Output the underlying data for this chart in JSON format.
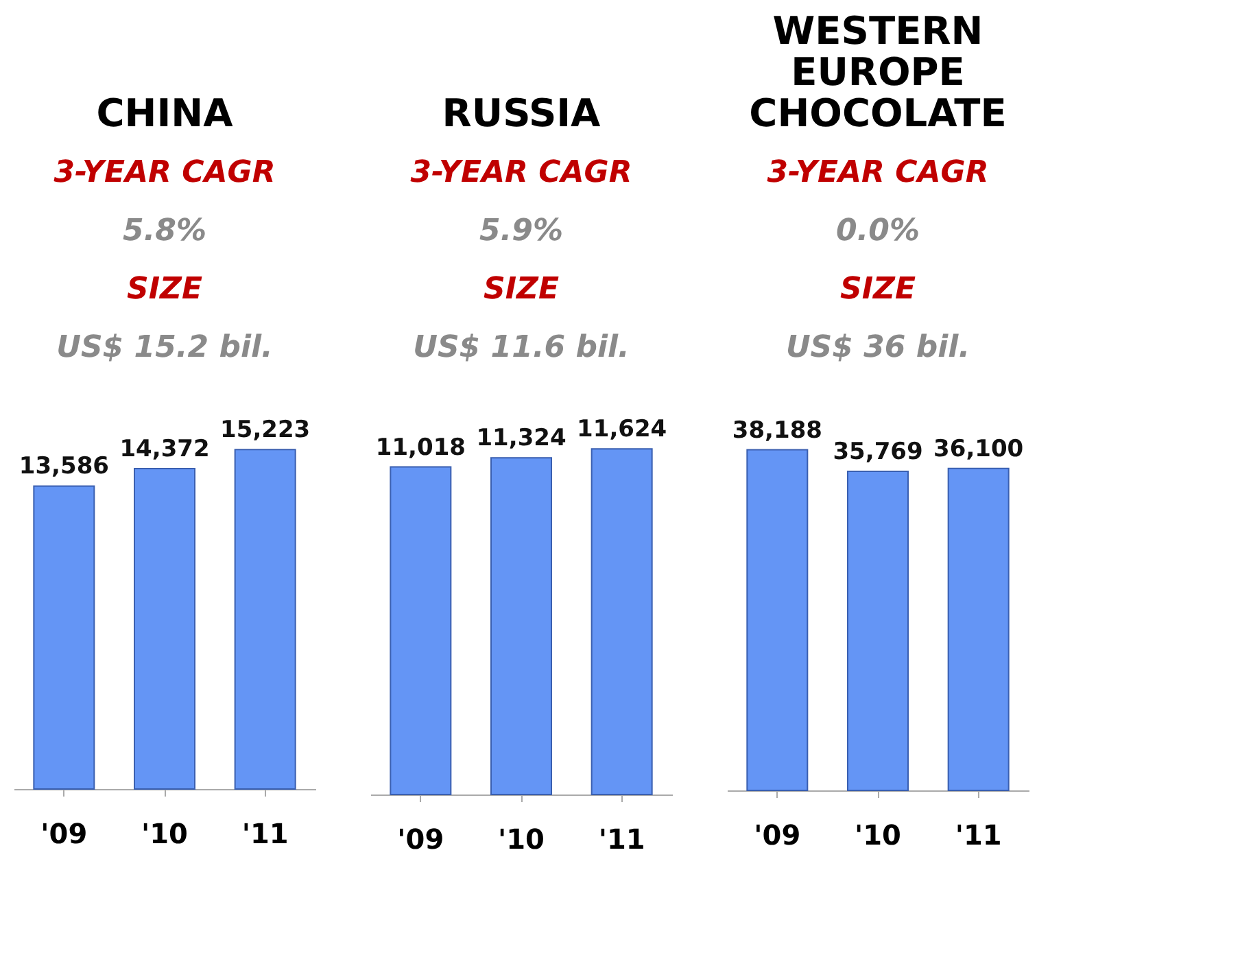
{
  "chart_data": [
    {
      "type": "bar",
      "title": "CHINA",
      "annotations": [
        "3-YEAR CAGR",
        "5.8%",
        "SIZE",
        "US$ 15.2 bil."
      ],
      "categories": [
        "'09",
        "'10",
        "'11"
      ],
      "values": [
        13586,
        14372,
        15223
      ],
      "value_labels": [
        "13,586",
        "14,372",
        "15,223"
      ],
      "color": "#6495f5",
      "tick_labels": "x",
      "grid": false
    },
    {
      "type": "bar",
      "title": "RUSSIA",
      "annotations": [
        "3-YEAR CAGR",
        "5.9%",
        "SIZE",
        "US$ 11.6 bil."
      ],
      "categories": [
        "'09",
        "'10",
        "'11"
      ],
      "values": [
        11018,
        11324,
        11624
      ],
      "value_labels": [
        "11,018",
        "11,324",
        "11,624"
      ],
      "color": "#6495f5",
      "tick_labels": "x",
      "grid": false
    },
    {
      "type": "bar",
      "title": "WESTERN EUROPE CHOCOLATE",
      "annotations": [
        "3-YEAR CAGR",
        "0.0%",
        "SIZE",
        "US$ 36 bil."
      ],
      "categories": [
        "'09",
        "'10",
        "'11"
      ],
      "values": [
        38188,
        35769,
        36100
      ],
      "value_labels": [
        "38,188",
        "35,769",
        "36,100"
      ],
      "color": "#6495f5",
      "tick_labels": "x",
      "grid": false
    }
  ]
}
